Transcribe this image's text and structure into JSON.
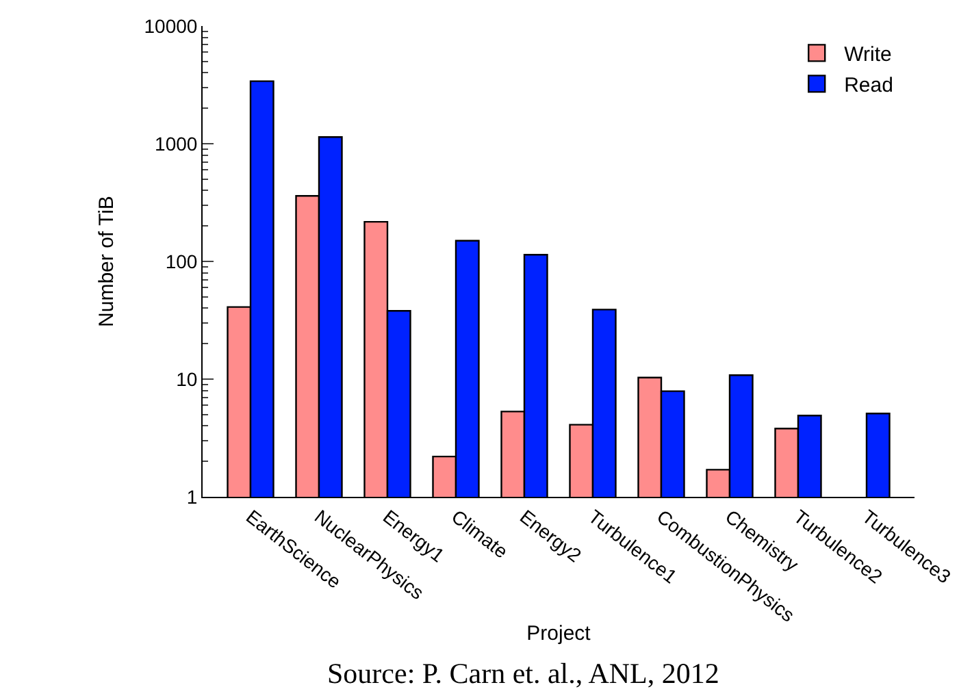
{
  "chart_data": {
    "type": "bar",
    "xlabel": "Project",
    "ylabel": "Number of TiB",
    "categories": [
      "EarthScience",
      "NuclearPhysics",
      "Energy1",
      "Climate",
      "Energy2",
      "Turbulence1",
      "CombustionPhysics",
      "Chemistry",
      "Turbulence2",
      "Turbulence3"
    ],
    "series": [
      {
        "name": "Write",
        "color": "#ff8c8c",
        "values": [
          41,
          360,
          217,
          2.2,
          5.3,
          4.1,
          10.3,
          1.7,
          3.8,
          null
        ]
      },
      {
        "name": "Read",
        "color": "#0022ff",
        "values": [
          3400,
          1140,
          38,
          150,
          114,
          39,
          7.9,
          10.8,
          4.9,
          5.1
        ]
      }
    ],
    "log": true,
    "ylim": [
      1,
      10000
    ],
    "yticks": [
      1,
      10,
      100,
      1000,
      10000
    ],
    "grid": false,
    "legend": "top right",
    "annotations": [
      "Source: P. Carn et. al., ANL, 2012"
    ]
  }
}
